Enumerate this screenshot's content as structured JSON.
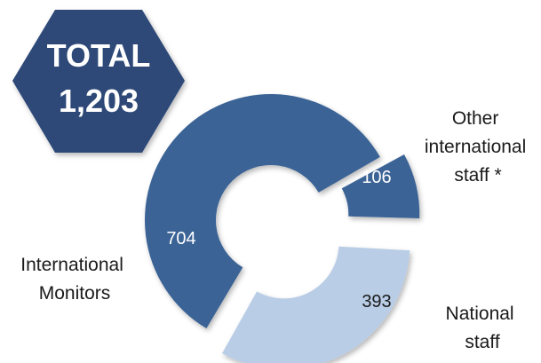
{
  "total_badge": {
    "line1": "TOTAL",
    "line2": "1,203",
    "color": "#2e4a78"
  },
  "chart_data": {
    "type": "pie",
    "variant": "exploded donut",
    "title": "",
    "total": 1203,
    "slices": [
      {
        "key": "intl_monitors",
        "value": 704,
        "value_label": "704",
        "label_lines": [
          "International",
          "Monitors"
        ],
        "color": "#3a6396",
        "value_text_color": "#ffffff"
      },
      {
        "key": "other_intl",
        "value": 106,
        "value_label": "106",
        "label_lines": [
          "Other",
          "international",
          "staff *"
        ],
        "color": "#3a6396",
        "value_text_color": "#ffffff"
      },
      {
        "key": "national",
        "value": 393,
        "value_label": "393",
        "label_lines": [
          "National",
          "staff"
        ],
        "color": "#b9cde6",
        "value_text_color": "#1a1a1a"
      }
    ]
  }
}
